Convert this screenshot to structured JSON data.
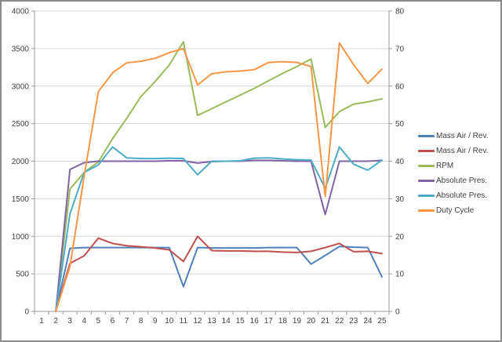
{
  "chart_data": {
    "type": "line",
    "title": "",
    "x_categories": [
      1,
      2,
      3,
      4,
      5,
      6,
      7,
      8,
      9,
      10,
      11,
      12,
      13,
      14,
      15,
      16,
      17,
      18,
      19,
      20,
      21,
      22,
      23,
      24,
      25
    ],
    "left_axis": {
      "min": 0,
      "max": 4000,
      "step": 500,
      "tick_labels": [
        "0",
        "500",
        "1000",
        "1500",
        "2000",
        "2500",
        "3000",
        "3500",
        "4000"
      ]
    },
    "right_axis": {
      "min": 0,
      "max": 80,
      "step": 10,
      "tick_labels": [
        "0",
        "10",
        "20",
        "30",
        "40",
        "50",
        "60",
        "70",
        "80"
      ]
    },
    "grid": true,
    "legend_position": "right",
    "series": [
      {
        "name": "Mass Air / Rev.",
        "key": "mass-air-rev-1",
        "color": "#4F81BD",
        "axis": "left",
        "values": [
          null,
          0,
          840,
          850,
          850,
          850,
          850,
          850,
          850,
          850,
          330,
          850,
          845,
          845,
          845,
          845,
          850,
          850,
          850,
          630,
          745,
          865,
          855,
          850,
          460
        ]
      },
      {
        "name": "Mass Air / Rev.",
        "key": "mass-air-rev-2",
        "color": "#C0504D",
        "axis": "left",
        "values": [
          null,
          0,
          640,
          740,
          975,
          905,
          875,
          860,
          845,
          820,
          665,
          1000,
          810,
          805,
          805,
          800,
          800,
          790,
          785,
          800,
          850,
          905,
          795,
          800,
          770
        ]
      },
      {
        "name": "RPM",
        "key": "rpm",
        "color": "#9BBB59",
        "axis": "left",
        "values": [
          null,
          0,
          1630,
          1850,
          1990,
          2300,
          2570,
          2860,
          3060,
          3280,
          3590,
          2610,
          2700,
          2790,
          2880,
          2970,
          3070,
          3170,
          3260,
          3360,
          2450,
          2660,
          2760,
          2790,
          2830
        ]
      },
      {
        "name": "Absolute Pres.",
        "key": "absolute-pres-1",
        "color": "#8064A2",
        "axis": "left",
        "values": [
          null,
          0,
          1890,
          1980,
          2000,
          2000,
          2000,
          2000,
          2000,
          2005,
          2005,
          1975,
          1995,
          2000,
          2000,
          2010,
          2010,
          2005,
          2000,
          2000,
          1290,
          2000,
          2000,
          2000,
          2010
        ]
      },
      {
        "name": "Absolute Pres.",
        "key": "absolute-pres-2",
        "color": "#4BACC6",
        "axis": "left",
        "values": [
          null,
          0,
          1300,
          1850,
          1950,
          2190,
          2045,
          2035,
          2035,
          2040,
          2035,
          1820,
          2000,
          2000,
          2005,
          2040,
          2045,
          2030,
          2020,
          2015,
          1640,
          2190,
          1960,
          1880,
          2015
        ]
      },
      {
        "name": "Duty Cycle",
        "key": "duty-cycle",
        "color": "#F79646",
        "axis": "right",
        "values": [
          null,
          0,
          12,
          36,
          58.5,
          63.5,
          66.2,
          66.6,
          67.4,
          68.9,
          70,
          60.3,
          63.3,
          63.8,
          64,
          64.4,
          66.3,
          66.5,
          66.3,
          65.2,
          30.6,
          71.5,
          65.7,
          60.7,
          64.5
        ]
      }
    ]
  },
  "colors": {
    "background": "#FFFFFF",
    "border": "#8C8C8C",
    "grid": "#D6D6D6",
    "axis": "#999999",
    "text": "#3F3F3F"
  }
}
